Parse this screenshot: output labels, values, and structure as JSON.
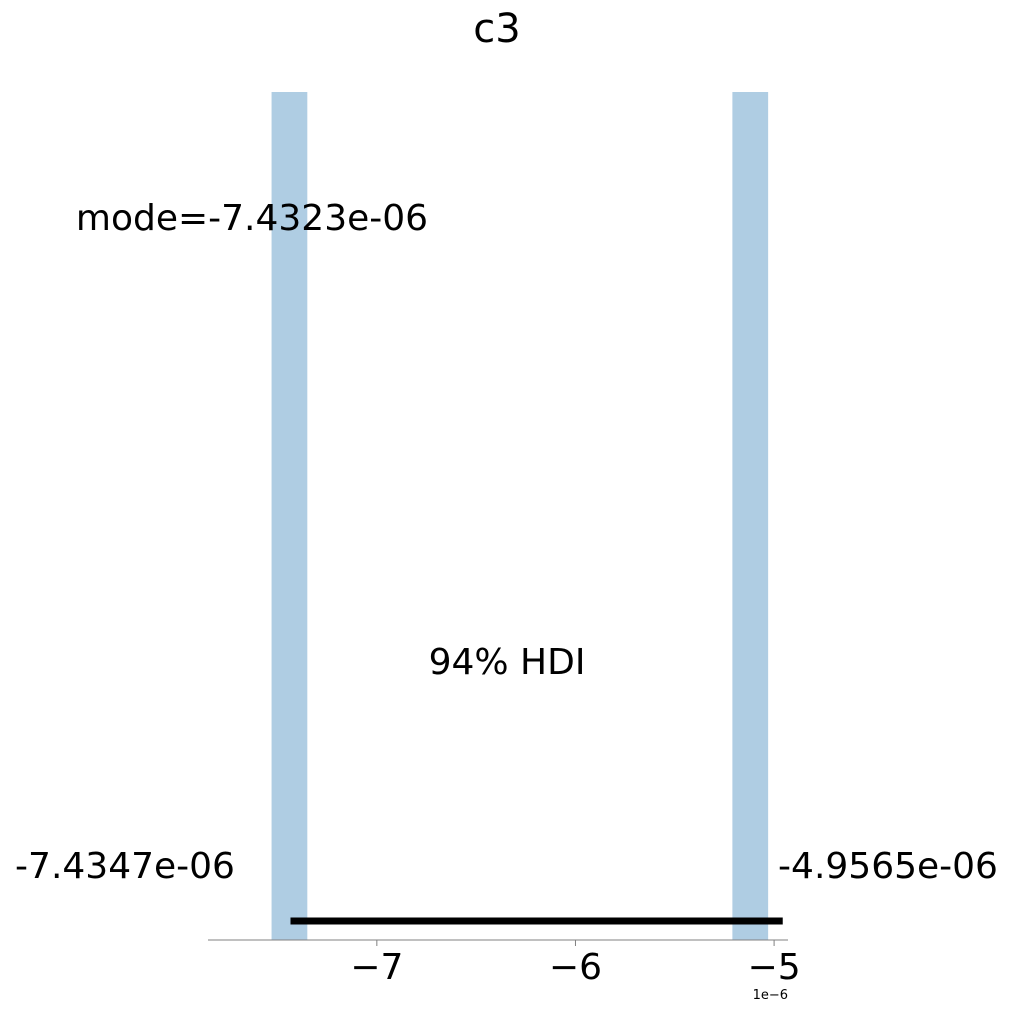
{
  "chart_data": {
    "type": "bar",
    "title": "c3",
    "xlabel": "",
    "ylabel": "",
    "grid": false,
    "bins": [
      {
        "x0": -7.53e-06,
        "x1": -7.35e-06,
        "value": 1
      },
      {
        "x0": -5.21e-06,
        "x1": -5.03e-06,
        "value": 1
      }
    ],
    "xlim": [
      -7.85e-06,
      -4.93e-06
    ],
    "ylim": [
      0,
      1
    ],
    "x_ticks": [
      -7e-06,
      -6e-06,
      -5e-06
    ],
    "x_tick_labels": [
      "−7",
      "−6",
      "−5"
    ],
    "x_offset_label": "1e−6",
    "mode_label": "mode=-7.4323e-06",
    "hdi": {
      "prob_label": "94% HDI",
      "low": -7.4347e-06,
      "high": -4.9565e-06,
      "low_label": "-7.4347e-06",
      "high_label": "-4.9565e-06"
    },
    "colors": {
      "bar": "#afcde3",
      "hdi_line": "#000000",
      "axis": "#808080",
      "text": "#000000"
    }
  }
}
